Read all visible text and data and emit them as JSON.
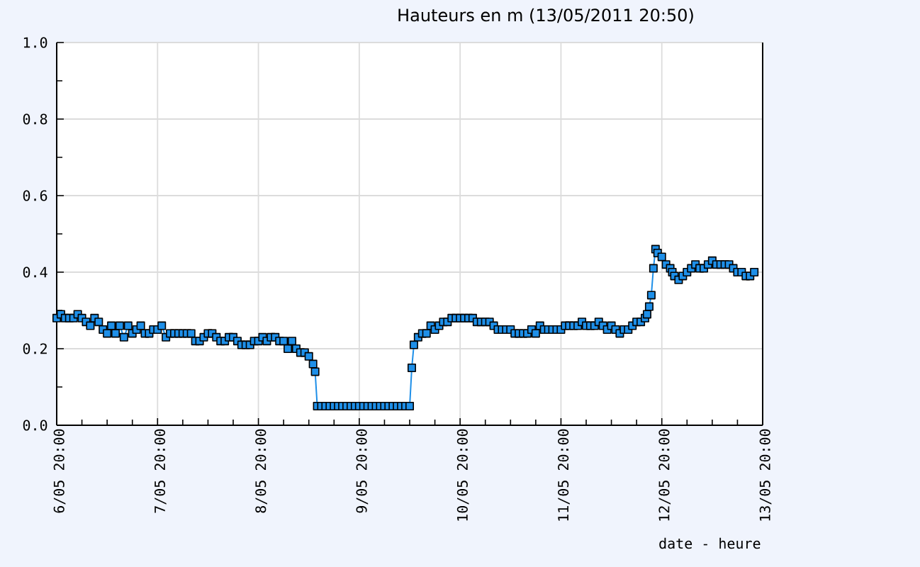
{
  "chart_data": {
    "type": "line",
    "title": "Hauteurs en m (13/05/2011 20:50)",
    "xlabel": "date - heure",
    "color": "#1e8fe8",
    "marker": "square",
    "line_style": "solid",
    "grid": true,
    "xlim": [
      "2011-05-06T20:00",
      "2011-05-13T20:00"
    ],
    "ylim": [
      0,
      1
    ],
    "xticks": [
      {
        "value": "2011-05-06T20:00",
        "label": "6/05 20:00"
      },
      {
        "value": "2011-05-07T02:00",
        "label": null
      },
      {
        "value": "2011-05-07T08:00",
        "label": null
      },
      {
        "value": "2011-05-07T14:00",
        "label": null
      },
      {
        "value": "2011-05-07T20:00",
        "label": "7/05 20:00"
      },
      {
        "value": "2011-05-08T02:00",
        "label": null
      },
      {
        "value": "2011-05-08T08:00",
        "label": null
      },
      {
        "value": "2011-05-08T14:00",
        "label": null
      },
      {
        "value": "2011-05-08T20:00",
        "label": "8/05 20:00"
      },
      {
        "value": "2011-05-09T02:00",
        "label": null
      },
      {
        "value": "2011-05-09T08:00",
        "label": null
      },
      {
        "value": "2011-05-09T14:00",
        "label": null
      },
      {
        "value": "2011-05-09T20:00",
        "label": "9/05 20:00"
      },
      {
        "value": "2011-05-10T02:00",
        "label": null
      },
      {
        "value": "2011-05-10T08:00",
        "label": null
      },
      {
        "value": "2011-05-10T14:00",
        "label": null
      },
      {
        "value": "2011-05-10T20:00",
        "label": "10/05 20:00"
      },
      {
        "value": "2011-05-11T02:00",
        "label": null
      },
      {
        "value": "2011-05-11T08:00",
        "label": null
      },
      {
        "value": "2011-05-11T14:00",
        "label": null
      },
      {
        "value": "2011-05-11T20:00",
        "label": "11/05 20:00"
      },
      {
        "value": "2011-05-12T02:00",
        "label": null
      },
      {
        "value": "2011-05-12T08:00",
        "label": null
      },
      {
        "value": "2011-05-12T14:00",
        "label": null
      },
      {
        "value": "2011-05-12T20:00",
        "label": "12/05 20:00"
      },
      {
        "value": "2011-05-13T02:00",
        "label": null
      },
      {
        "value": "2011-05-13T08:00",
        "label": null
      },
      {
        "value": "2011-05-13T14:00",
        "label": null
      },
      {
        "value": "2011-05-13T20:00",
        "label": "13/05 20:00"
      }
    ],
    "yticks": [
      {
        "value": 0,
        "label": "0.0"
      },
      {
        "value": 0.1,
        "label": null
      },
      0.2,
      {
        "value": 0.3,
        "label": null
      },
      0.4,
      {
        "value": 0.5,
        "label": null
      },
      0.6,
      {
        "value": 0.7,
        "label": null
      },
      0.8,
      {
        "value": 0.9,
        "label": null
      },
      {
        "value": 1,
        "label": "1.0"
      }
    ],
    "x": [
      "2011-05-06T20:00",
      "2011-05-06T21:00",
      "2011-05-06T22:00",
      "2011-05-06T23:00",
      "2011-05-07T00:00",
      "2011-05-07T01:00",
      "2011-05-07T02:00",
      "2011-05-07T03:00",
      "2011-05-07T04:00",
      "2011-05-07T05:00",
      "2011-05-07T06:00",
      "2011-05-07T07:00",
      "2011-05-07T08:00",
      "2011-05-07T09:00",
      "2011-05-07T10:00",
      "2011-05-07T11:00",
      "2011-05-07T12:00",
      "2011-05-07T13:00",
      "2011-05-07T14:00",
      "2011-05-07T15:00",
      "2011-05-07T16:00",
      "2011-05-07T17:00",
      "2011-05-07T18:00",
      "2011-05-07T19:00",
      "2011-05-07T20:00",
      "2011-05-07T21:00",
      "2011-05-07T22:00",
      "2011-05-07T23:00",
      "2011-05-08T00:00",
      "2011-05-08T01:00",
      "2011-05-08T02:00",
      "2011-05-08T03:00",
      "2011-05-08T04:00",
      "2011-05-08T05:00",
      "2011-05-08T06:00",
      "2011-05-08T07:00",
      "2011-05-08T08:00",
      "2011-05-08T09:00",
      "2011-05-08T10:00",
      "2011-05-08T11:00",
      "2011-05-08T12:00",
      "2011-05-08T13:00",
      "2011-05-08T14:00",
      "2011-05-08T15:00",
      "2011-05-08T16:00",
      "2011-05-08T17:00",
      "2011-05-08T18:00",
      "2011-05-08T19:00",
      "2011-05-08T20:00",
      "2011-05-08T21:00",
      "2011-05-08T22:00",
      "2011-05-08T23:00",
      "2011-05-09T00:00",
      "2011-05-09T01:00",
      "2011-05-09T02:00",
      "2011-05-09T03:00",
      "2011-05-09T04:00",
      "2011-05-09T05:00",
      "2011-05-09T06:00",
      "2011-05-09T07:00",
      "2011-05-09T08:00",
      "2011-05-09T09:00",
      "2011-05-09T09:30",
      "2011-05-09T10:00",
      "2011-05-09T11:00",
      "2011-05-09T12:00",
      "2011-05-09T13:00",
      "2011-05-09T14:00",
      "2011-05-09T15:00",
      "2011-05-09T16:00",
      "2011-05-09T17:00",
      "2011-05-09T18:00",
      "2011-05-09T19:00",
      "2011-05-09T20:00",
      "2011-05-09T21:00",
      "2011-05-09T22:00",
      "2011-05-09T23:00",
      "2011-05-10T00:00",
      "2011-05-10T01:00",
      "2011-05-10T02:00",
      "2011-05-10T03:00",
      "2011-05-10T04:00",
      "2011-05-10T05:00",
      "2011-05-10T06:00",
      "2011-05-10T07:00",
      "2011-05-10T08:00",
      "2011-05-10T08:30",
      "2011-05-10T09:00",
      "2011-05-10T10:00",
      "2011-05-10T11:00",
      "2011-05-10T12:00",
      "2011-05-10T13:00",
      "2011-05-10T14:00",
      "2011-05-10T15:00",
      "2011-05-10T16:00",
      "2011-05-10T17:00",
      "2011-05-10T18:00",
      "2011-05-10T19:00",
      "2011-05-10T20:00",
      "2011-05-10T21:00",
      "2011-05-10T22:00",
      "2011-05-10T23:00",
      "2011-05-11T00:00",
      "2011-05-11T01:00",
      "2011-05-11T02:00",
      "2011-05-11T03:00",
      "2011-05-11T04:00",
      "2011-05-11T05:00",
      "2011-05-11T06:00",
      "2011-05-11T07:00",
      "2011-05-11T08:00",
      "2011-05-11T09:00",
      "2011-05-11T10:00",
      "2011-05-11T11:00",
      "2011-05-11T12:00",
      "2011-05-11T13:00",
      "2011-05-11T14:00",
      "2011-05-11T15:00",
      "2011-05-11T16:00",
      "2011-05-11T17:00",
      "2011-05-11T18:00",
      "2011-05-11T19:00",
      "2011-05-11T20:00",
      "2011-05-11T21:00",
      "2011-05-11T22:00",
      "2011-05-11T23:00",
      "2011-05-12T00:00",
      "2011-05-12T01:00",
      "2011-05-12T02:00",
      "2011-05-12T03:00",
      "2011-05-12T04:00",
      "2011-05-12T05:00",
      "2011-05-12T06:00",
      "2011-05-12T07:00",
      "2011-05-12T08:00",
      "2011-05-12T09:00",
      "2011-05-12T10:00",
      "2011-05-12T11:00",
      "2011-05-12T12:00",
      "2011-05-12T13:00",
      "2011-05-12T14:00",
      "2011-05-12T15:00",
      "2011-05-12T16:00",
      "2011-05-12T16:30",
      "2011-05-12T17:00",
      "2011-05-12T17:30",
      "2011-05-12T18:00",
      "2011-05-12T18:30",
      "2011-05-12T19:00",
      "2011-05-12T20:00",
      "2011-05-12T21:00",
      "2011-05-12T22:00",
      "2011-05-12T22:30",
      "2011-05-12T23:00",
      "2011-05-13T00:00",
      "2011-05-13T01:00",
      "2011-05-13T02:00",
      "2011-05-13T03:00",
      "2011-05-13T04:00",
      "2011-05-13T05:00",
      "2011-05-13T06:00",
      "2011-05-13T07:00",
      "2011-05-13T08:00",
      "2011-05-13T09:00",
      "2011-05-13T10:00",
      "2011-05-13T11:00",
      "2011-05-13T12:00",
      "2011-05-13T13:00",
      "2011-05-13T14:00",
      "2011-05-13T15:00",
      "2011-05-13T16:00",
      "2011-05-13T17:00",
      "2011-05-13T18:00"
    ],
    "values": [
      0.28,
      0.29,
      0.28,
      0.28,
      0.28,
      0.29,
      0.28,
      0.27,
      0.26,
      0.28,
      0.27,
      0.25,
      0.24,
      0.26,
      0.24,
      0.26,
      0.23,
      0.26,
      0.24,
      0.25,
      0.26,
      0.24,
      0.24,
      0.25,
      0.25,
      0.26,
      0.23,
      0.24,
      0.24,
      0.24,
      0.24,
      0.24,
      0.24,
      0.22,
      0.22,
      0.23,
      0.24,
      0.24,
      0.23,
      0.22,
      0.22,
      0.23,
      0.23,
      0.22,
      0.21,
      0.21,
      0.21,
      0.22,
      0.22,
      0.23,
      0.22,
      0.23,
      0.23,
      0.22,
      0.22,
      0.2,
      0.22,
      0.2,
      0.19,
      0.19,
      0.18,
      0.16,
      0.14,
      0.05,
      0.05,
      0.05,
      0.05,
      0.05,
      0.05,
      0.05,
      0.05,
      0.05,
      0.05,
      0.05,
      0.05,
      0.05,
      0.05,
      0.05,
      0.05,
      0.05,
      0.05,
      0.05,
      0.05,
      0.05,
      0.05,
      0.05,
      0.15,
      0.21,
      0.23,
      0.24,
      0.24,
      0.26,
      0.25,
      0.26,
      0.27,
      0.27,
      0.28,
      0.28,
      0.28,
      0.28,
      0.28,
      0.28,
      0.27,
      0.27,
      0.27,
      0.27,
      0.26,
      0.25,
      0.25,
      0.25,
      0.25,
      0.24,
      0.24,
      0.24,
      0.24,
      0.25,
      0.24,
      0.26,
      0.25,
      0.25,
      0.25,
      0.25,
      0.25,
      0.26,
      0.26,
      0.26,
      0.26,
      0.27,
      0.26,
      0.26,
      0.26,
      0.27,
      0.26,
      0.25,
      0.26,
      0.25,
      0.24,
      0.25,
      0.25,
      0.26,
      0.27,
      0.27,
      0.28,
      0.29,
      0.31,
      0.34,
      0.41,
      0.46,
      0.45,
      0.44,
      0.42,
      0.41,
      0.4,
      0.39,
      0.38,
      0.39,
      0.4,
      0.41,
      0.42,
      0.41,
      0.41,
      0.42,
      0.43,
      0.42,
      0.42,
      0.42,
      0.42,
      0.41,
      0.4,
      0.4,
      0.39,
      0.39,
      0.4
    ]
  }
}
